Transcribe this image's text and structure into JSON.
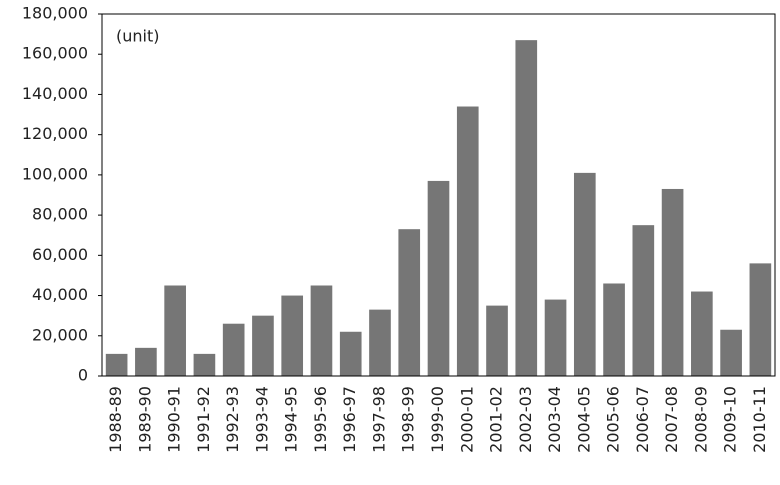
{
  "chart_data": {
    "type": "bar",
    "annotation": "(unit)",
    "categories": [
      "1988-89",
      "1989-90",
      "1990-91",
      "1991-92",
      "1992-93",
      "1993-94",
      "1994-95",
      "1995-96",
      "1996-97",
      "1997-98",
      "1998-99",
      "1999-00",
      "2000-01",
      "2001-02",
      "2002-03",
      "2003-04",
      "2004-05",
      "2005-06",
      "2006-07",
      "2007-08",
      "2008-09",
      "2009-10",
      "2010-11"
    ],
    "values": [
      11000,
      14000,
      45000,
      11000,
      26000,
      30000,
      40000,
      45000,
      22000,
      33000,
      73000,
      97000,
      134000,
      35000,
      167000,
      38000,
      101000,
      46000,
      75000,
      93000,
      42000,
      23000,
      56000
    ],
    "color": "#767676",
    "ylim": [
      0,
      180000
    ],
    "yticks": [
      0,
      {
        "value": 20000,
        "label": "20,000"
      },
      {
        "value": 40000,
        "label": "40,000"
      },
      {
        "value": 60000,
        "label": "60,000"
      },
      {
        "value": 80000,
        "label": "80,000"
      },
      {
        "value": 100000,
        "label": "100,000"
      },
      {
        "value": 120000,
        "label": "120,000"
      },
      {
        "value": 140000,
        "label": "140,000"
      },
      {
        "value": 160000,
        "label": "160,000"
      },
      {
        "value": 180000,
        "label": "180,000"
      }
    ],
    "grid": false
  }
}
